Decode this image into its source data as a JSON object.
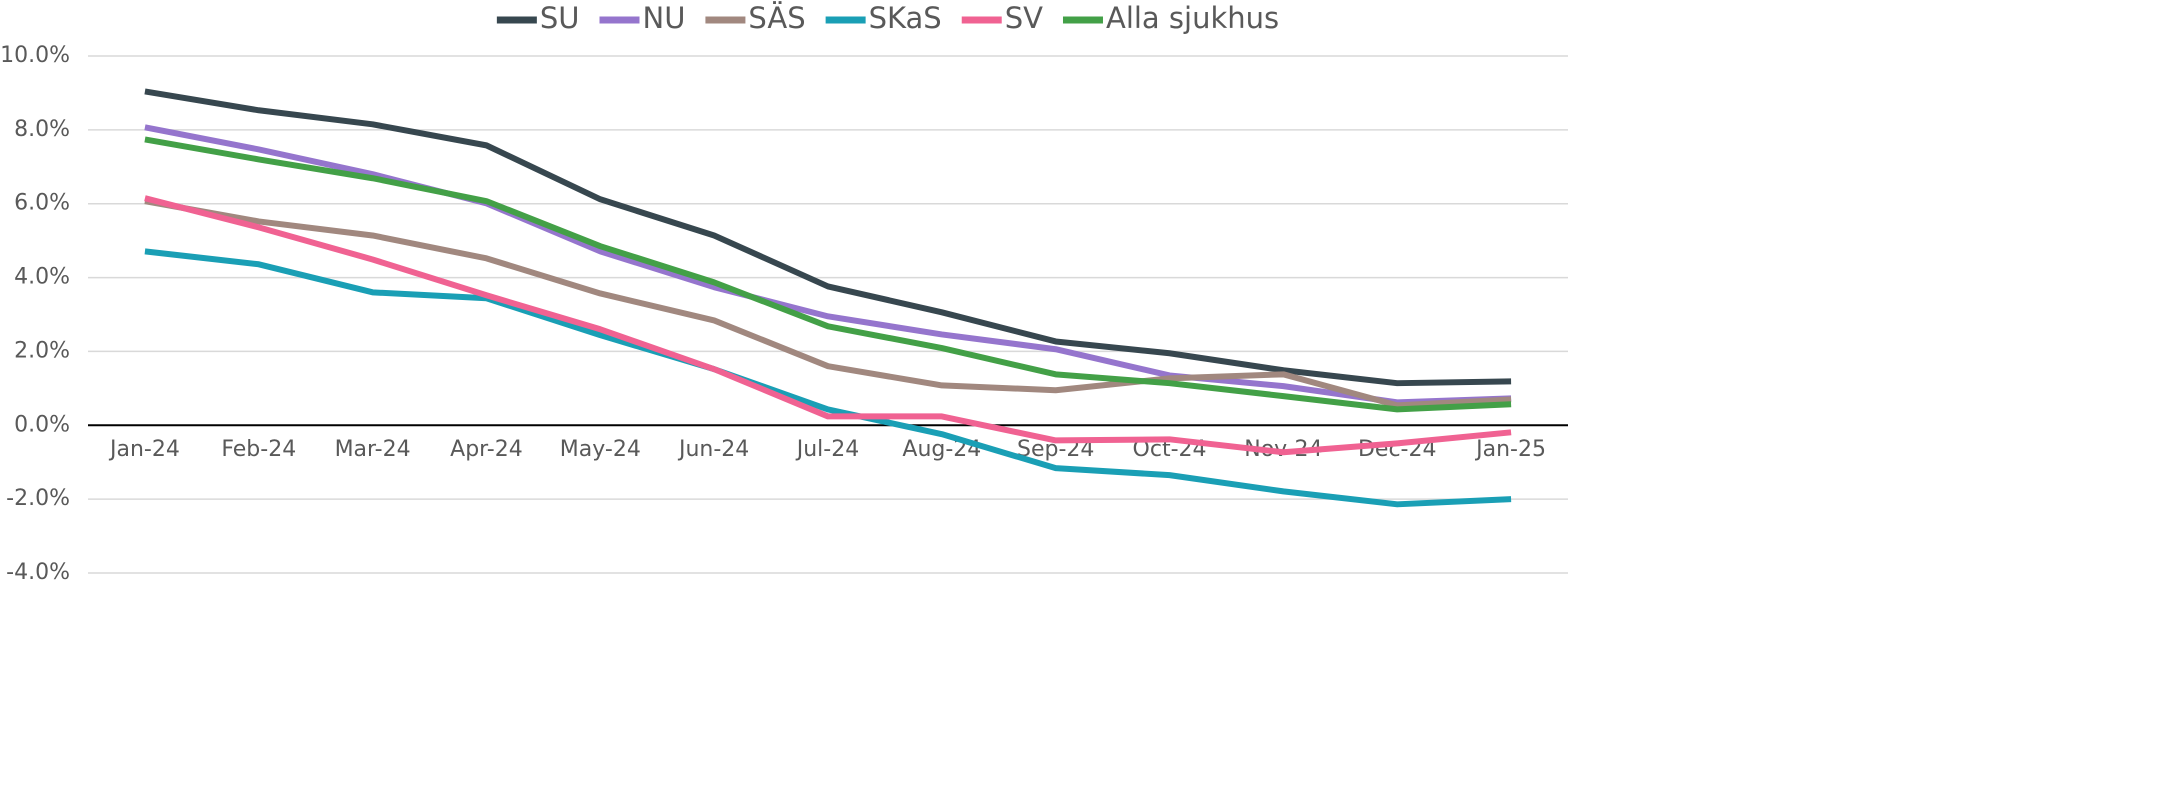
{
  "chart_data": {
    "type": "line",
    "categories": [
      "Jan-24",
      "Feb-24",
      "Mar-24",
      "Apr-24",
      "May-24",
      "Jun-24",
      "Jul-24",
      "Aug-24",
      "Sep-24",
      "Oct-24",
      "Nov-24",
      "Dec-24",
      "Jan-25"
    ],
    "series": [
      {
        "name": "SU",
        "color": "#37474f",
        "values": [
          9.04,
          8.53,
          8.15,
          7.58,
          6.12,
          5.14,
          3.76,
          3.06,
          2.27,
          1.95,
          1.49,
          1.14,
          1.19
        ]
      },
      {
        "name": "NU",
        "color": "#9575cd",
        "values": [
          8.07,
          7.47,
          6.8,
          6.01,
          4.71,
          3.74,
          2.95,
          2.46,
          2.06,
          1.35,
          1.06,
          0.62,
          0.73
        ]
      },
      {
        "name": "SÄS",
        "color": "#a1887f",
        "values": [
          6.07,
          5.52,
          5.14,
          4.52,
          3.57,
          2.84,
          1.6,
          1.08,
          0.95,
          1.27,
          1.38,
          0.54,
          0.7
        ]
      },
      {
        "name": "SKaS",
        "color": "#1a9fb5",
        "values": [
          4.71,
          4.36,
          3.6,
          3.44,
          2.44,
          1.52,
          0.43,
          -0.24,
          -1.16,
          -1.35,
          -1.79,
          -2.14,
          -2.0
        ]
      },
      {
        "name": "SV",
        "color": "#f06292",
        "values": [
          6.15,
          5.36,
          4.49,
          3.52,
          2.6,
          1.52,
          0.24,
          0.24,
          -0.41,
          -0.38,
          -0.73,
          -0.49,
          -0.19
        ]
      },
      {
        "name": "Alla sjukhus",
        "color": "#43a047",
        "values": [
          7.74,
          7.2,
          6.69,
          6.07,
          4.85,
          3.87,
          2.68,
          2.09,
          1.38,
          1.14,
          0.79,
          0.43,
          0.57
        ]
      }
    ],
    "ylim": [
      -4,
      10
    ],
    "yticks": [
      {
        "value": -4,
        "label": "-4.0%"
      },
      {
        "value": -2,
        "label": "-2.0%"
      },
      {
        "value": 0,
        "label": "0.0%"
      },
      {
        "value": 2,
        "label": "2.0%"
      },
      {
        "value": 4,
        "label": "4.0%"
      },
      {
        "value": 6,
        "label": "6.0%"
      },
      {
        "value": 8,
        "label": "8.0%"
      },
      {
        "value": 10,
        "label": "10.0%"
      }
    ],
    "grid": true,
    "legend": "top"
  }
}
